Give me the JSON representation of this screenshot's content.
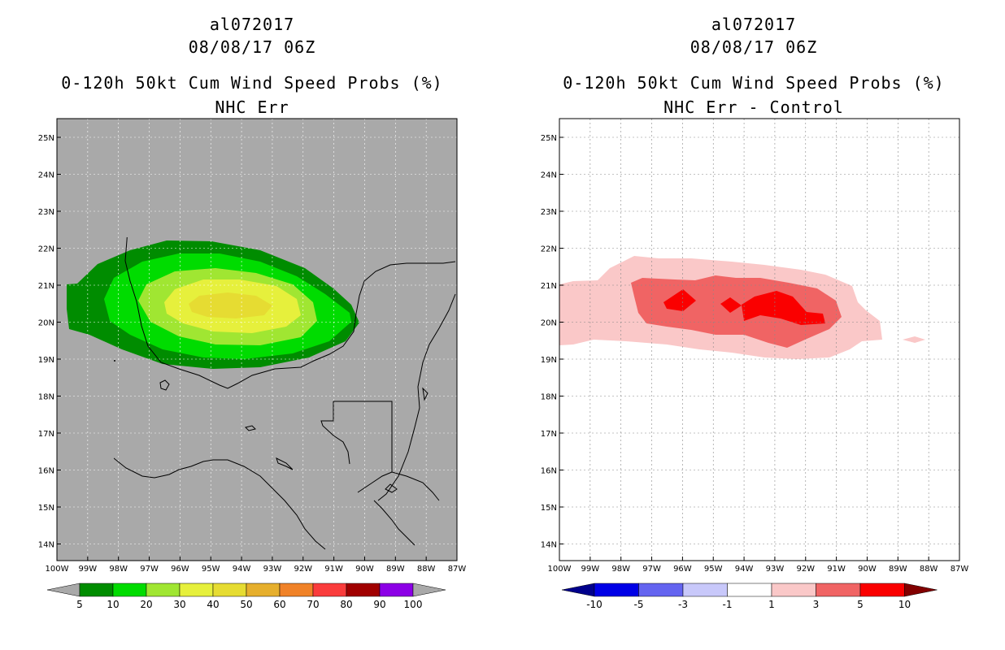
{
  "panels": [
    {
      "storm_id": "al072017",
      "datetime": "08/08/17 06Z",
      "title": "0-120h 50kt Cum Wind Speed Probs (%)",
      "subtitle": "NHC Err",
      "background_color": "#a9a9a9",
      "lat_labels": [
        "25N",
        "24N",
        "23N",
        "22N",
        "21N",
        "20N",
        "19N",
        "18N",
        "17N",
        "16N",
        "15N",
        "14N"
      ],
      "lon_labels": [
        "100W",
        "99W",
        "98W",
        "97W",
        "96W",
        "95W",
        "94W",
        "93W",
        "92W",
        "91W",
        "90W",
        "89W",
        "88W",
        "87W"
      ],
      "colorbar": {
        "colors": [
          "#008c00",
          "#00dc00",
          "#a0e632",
          "#e6f03c",
          "#e6dc32",
          "#e6af2d",
          "#f08228",
          "#fa3c3c",
          "#a00000",
          "#8c00e6"
        ],
        "end_left_color": "#a9a9a9",
        "end_right_color": "#a9a9a9",
        "labels": [
          "5",
          "10",
          "20",
          "30",
          "40",
          "50",
          "60",
          "70",
          "80",
          "90",
          "100"
        ]
      }
    },
    {
      "storm_id": "al072017",
      "datetime": "08/08/17 06Z",
      "title": "0-120h 50kt Cum Wind Speed Probs (%)",
      "subtitle": "NHC Err - Control",
      "background_color": "#ffffff",
      "lat_labels": [
        "25N",
        "24N",
        "23N",
        "22N",
        "21N",
        "20N",
        "19N",
        "18N",
        "17N",
        "16N",
        "15N",
        "14N"
      ],
      "lon_labels": [
        "100W",
        "99W",
        "98W",
        "97W",
        "96W",
        "95W",
        "94W",
        "93W",
        "92W",
        "91W",
        "90W",
        "89W",
        "88W",
        "87W"
      ],
      "colorbar": {
        "colors": [
          "#0000e6",
          "#6464f0",
          "#c8c8fa",
          "#ffffff",
          "#fac8c8",
          "#f06464",
          "#fa0000"
        ],
        "end_left_color": "#00008c",
        "end_right_color": "#820000",
        "labels": [
          "-10",
          "-5",
          "-3",
          "-1",
          "1",
          "3",
          "5",
          "10"
        ]
      }
    }
  ]
}
